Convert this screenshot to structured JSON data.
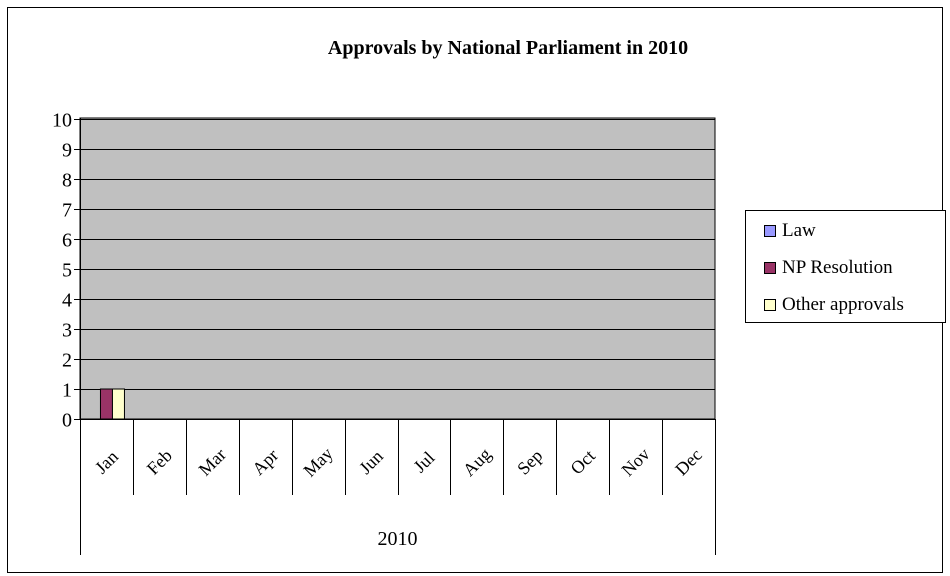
{
  "chart_data": {
    "type": "bar",
    "title": "Approvals by National Parliament in 2010",
    "xlabel": "",
    "ylabel": "",
    "ylim": [
      0,
      10
    ],
    "yticks": [
      0,
      1,
      2,
      3,
      4,
      5,
      6,
      7,
      8,
      9,
      10
    ],
    "categories": [
      "Jan",
      "Feb",
      "Mar",
      "Apr",
      "May",
      "Jun",
      "Jul",
      "Aug",
      "Sep",
      "Oct",
      "Nov",
      "Dec"
    ],
    "category_group": "2010",
    "series": [
      {
        "name": "Law",
        "color": "#9999ff",
        "values": [
          0,
          0,
          0,
          0,
          0,
          0,
          0,
          0,
          0,
          0,
          0,
          0
        ]
      },
      {
        "name": "NP Resolution",
        "color": "#993366",
        "values": [
          1,
          0,
          0,
          0,
          0,
          0,
          0,
          0,
          0,
          0,
          0,
          0
        ]
      },
      {
        "name": "Other approvals",
        "color": "#ffffcc",
        "values": [
          1,
          0,
          0,
          0,
          0,
          0,
          0,
          0,
          0,
          0,
          0,
          0
        ]
      }
    ],
    "plot_background": "#c0c0c0",
    "grid": true,
    "legend_position": "right"
  }
}
